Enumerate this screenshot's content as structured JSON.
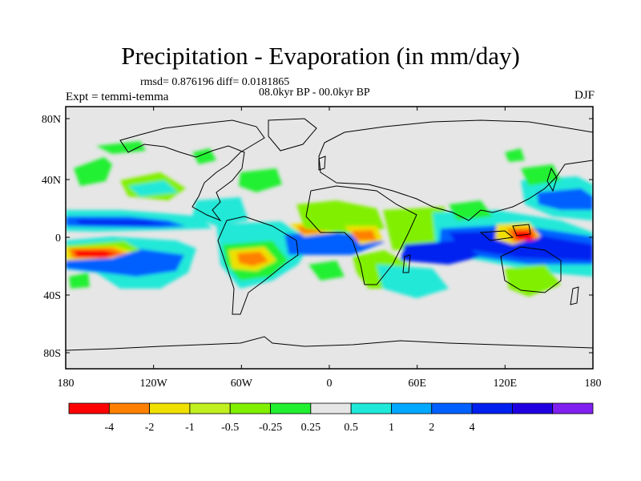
{
  "title": "Precipitation - Evaporation (in mm/day)",
  "stats_line": "rmsd= 0.876196  diff= 0.0181865",
  "period_line": "08.0kyr BP - 00.0kyr BP",
  "experiment_label": "Expt = temmi-temma",
  "season": "DJF",
  "map": {
    "x_axis_labels": [
      "180",
      "120W",
      "60W",
      "0",
      "60E",
      "120E",
      "180"
    ],
    "y_axis_labels": [
      "80N",
      "40N",
      "0",
      "40S",
      "80S"
    ],
    "background_color": "#e6e6e6",
    "coastline_color": "#000000"
  },
  "colorbar": {
    "colors": [
      "#ff0000",
      "#ff8000",
      "#f0e000",
      "#c0f020",
      "#80f000",
      "#20f030",
      "#e6e6e6",
      "#20e8d8",
      "#00a8ff",
      "#0060ff",
      "#0020f0",
      "#2000e0",
      "#8020f0"
    ],
    "tick_labels": [
      "-4",
      "-2",
      "-1",
      "-0.5",
      "-0.25",
      "0.25",
      "0.5",
      "1",
      "2",
      "4"
    ]
  }
}
